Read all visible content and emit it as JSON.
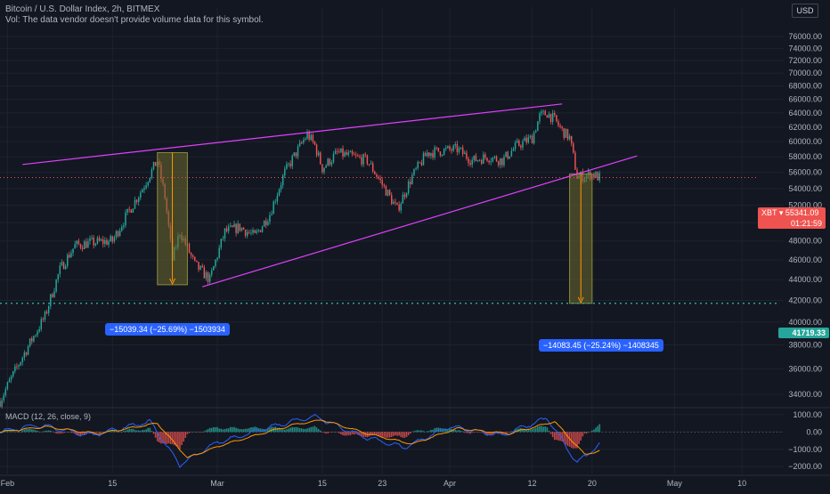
{
  "header": {
    "title": "Bitcoin / U.S. Dollar Index, 2h, BITMEX",
    "volume_note": "Vol: The data vendor doesn't provide volume data for this symbol."
  },
  "currency": "USD",
  "macd_label": "MACD (12, 26, close, 9)",
  "price_tag": {
    "symbol": "XBT",
    "price": "55341.09",
    "countdown": "01:21:59"
  },
  "level_tag": "41719.33",
  "measures": [
    {
      "text": "−15039.34 (−25.69%) −1503934"
    },
    {
      "text": "−14083.45 (−25.24%) −1408345"
    }
  ],
  "colors": {
    "background": "#131722",
    "up": "#26a69a",
    "down": "#ef5350",
    "trendline": "#e040fb",
    "macd_line": "#2962ff",
    "signal_line": "#ff9800",
    "measure_fill": "#6b6a2e",
    "measure_label": "#2962ff"
  },
  "chart_data": [
    {
      "type": "candlestick",
      "title": "Bitcoin / U.S. Dollar Index, 2h, BITMEX",
      "ylabel": "USD",
      "ylim": [
        33000,
        78000
      ],
      "yscale": "log",
      "y_ticks": [
        "34000.00",
        "36000.00",
        "38000.00",
        "40000.00",
        "42000.00",
        "44000.00",
        "46000.00",
        "48000.00",
        "50000.00",
        "52000.00",
        "54000.00",
        "56000.00",
        "58000.00",
        "60000.00",
        "62000.00",
        "64000.00",
        "66000.00",
        "68000.00",
        "70000.00",
        "72000.00",
        "74000.00",
        "76000.00"
      ],
      "x_ticks": [
        "Feb",
        "15",
        "Mar",
        "15",
        "23",
        "Apr",
        "12",
        "20",
        "May",
        "10"
      ],
      "x_tick_dates": [
        "2021-02-01",
        "2021-02-15",
        "2021-03-01",
        "2021-03-15",
        "2021-03-23",
        "2021-04-01",
        "2021-04-12",
        "2021-04-20",
        "2021-05-01",
        "2021-05-10"
      ],
      "x_range": [
        "2021-01-31",
        "2021-05-12"
      ],
      "series_anchors": [
        [
          "2021-01-31",
          33500
        ],
        [
          "2021-02-03",
          37000
        ],
        [
          "2021-02-06",
          40500
        ],
        [
          "2021-02-08",
          45000
        ],
        [
          "2021-02-10",
          47500
        ],
        [
          "2021-02-12",
          47800
        ],
        [
          "2021-02-15",
          48000
        ],
        [
          "2021-02-17",
          51000
        ],
        [
          "2021-02-19",
          54000
        ],
        [
          "2021-02-21",
          57500
        ],
        [
          "2021-02-22",
          53000
        ],
        [
          "2021-02-23",
          46000
        ],
        [
          "2021-02-24",
          49000
        ],
        [
          "2021-02-26",
          45500
        ],
        [
          "2021-02-28",
          44000
        ],
        [
          "2021-03-02",
          49000
        ],
        [
          "2021-03-04",
          49500
        ],
        [
          "2021-03-06",
          48500
        ],
        [
          "2021-03-08",
          51000
        ],
        [
          "2021-03-10",
          56000
        ],
        [
          "2021-03-13",
          61000
        ],
        [
          "2021-03-14",
          59500
        ],
        [
          "2021-03-15",
          56500
        ],
        [
          "2021-03-17",
          58500
        ],
        [
          "2021-03-19",
          58000
        ],
        [
          "2021-03-21",
          57500
        ],
        [
          "2021-03-23",
          54500
        ],
        [
          "2021-03-25",
          51500
        ],
        [
          "2021-03-27",
          55500
        ],
        [
          "2021-03-29",
          58500
        ],
        [
          "2021-03-31",
          58800
        ],
        [
          "2021-04-02",
          59000
        ],
        [
          "2021-04-04",
          57500
        ],
        [
          "2021-04-06",
          58000
        ],
        [
          "2021-04-08",
          57500
        ],
        [
          "2021-04-10",
          59500
        ],
        [
          "2021-04-12",
          60500
        ],
        [
          "2021-04-13",
          63500
        ],
        [
          "2021-04-14",
          64000
        ],
        [
          "2021-04-15",
          63000
        ],
        [
          "2021-04-16",
          61500
        ],
        [
          "2021-04-17",
          60500
        ],
        [
          "2021-04-18",
          55500
        ],
        [
          "2021-04-19",
          55500
        ],
        [
          "2021-04-20",
          55800
        ],
        [
          "2021-04-21",
          55341.09
        ]
      ],
      "price_line": 55341.09,
      "horizontal_level": 41719.33,
      "trendlines": [
        {
          "from": [
            "2021-02-03",
            57000
          ],
          "to": [
            "2021-04-16",
            65300
          ]
        },
        {
          "from": [
            "2021-02-27",
            43300
          ],
          "to": [
            "2021-04-26",
            58100
          ]
        }
      ],
      "measurements": [
        {
          "from": [
            "2021-02-21",
            58539.34
          ],
          "to": [
            "2021-02-25",
            43500
          ],
          "label": "−15039.34 (−25.69%) −1503934"
        },
        {
          "from": [
            "2021-04-17",
            55802.78
          ],
          "to": [
            "2021-04-20",
            41719.33
          ],
          "label": "−14083.45 (−25.24%) −1408345"
        }
      ]
    },
    {
      "type": "line",
      "title": "MACD (12, 26, close, 9)",
      "ylim": [
        -2400,
        1300
      ],
      "y_ticks": [
        "1000.00",
        "0.00",
        "−1000.00",
        "−2000.00"
      ],
      "series": [
        {
          "name": "MACD",
          "values_anchors": [
            [
              "2021-01-31",
              0
            ],
            [
              "2021-02-05",
              400
            ],
            [
              "2021-02-12",
              -200
            ],
            [
              "2021-02-20",
              600
            ],
            [
              "2021-02-24",
              -1900
            ],
            [
              "2021-03-01",
              -600
            ],
            [
              "2021-03-10",
              500
            ],
            [
              "2021-03-14",
              900
            ],
            [
              "2021-03-20",
              -200
            ],
            [
              "2021-03-26",
              -900
            ],
            [
              "2021-04-01",
              300
            ],
            [
              "2021-04-08",
              -200
            ],
            [
              "2021-04-14",
              800
            ],
            [
              "2021-04-18",
              -1800
            ],
            [
              "2021-04-21",
              -700
            ]
          ]
        },
        {
          "name": "Signal",
          "values_anchors": [
            [
              "2021-01-31",
              0
            ],
            [
              "2021-02-06",
              300
            ],
            [
              "2021-02-13",
              -100
            ],
            [
              "2021-02-21",
              500
            ],
            [
              "2021-02-25",
              -1500
            ],
            [
              "2021-03-02",
              -700
            ],
            [
              "2021-03-11",
              400
            ],
            [
              "2021-03-15",
              700
            ],
            [
              "2021-03-21",
              -100
            ],
            [
              "2021-03-27",
              -700
            ],
            [
              "2021-04-02",
              200
            ],
            [
              "2021-04-09",
              -100
            ],
            [
              "2021-04-15",
              600
            ],
            [
              "2021-04-19",
              -1300
            ],
            [
              "2021-04-21",
              -1100
            ]
          ]
        }
      ]
    }
  ]
}
